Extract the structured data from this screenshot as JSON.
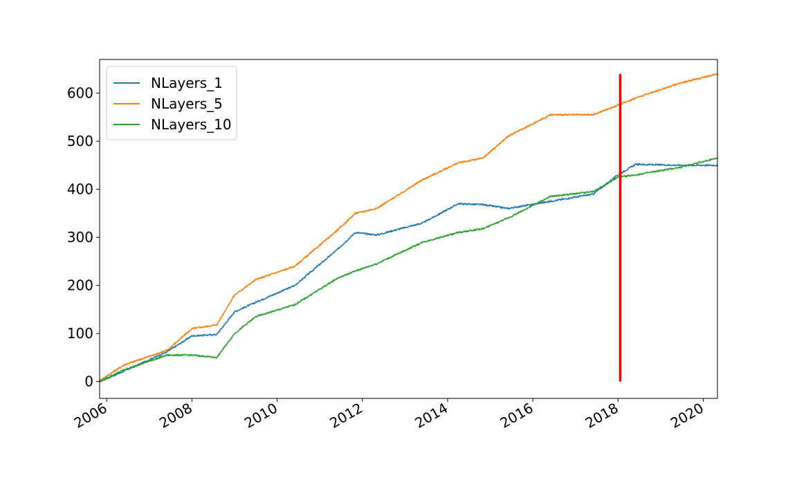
{
  "chart_data": {
    "type": "line",
    "title": "",
    "xlabel": "",
    "ylabel": "",
    "x_ticks": [
      "2006",
      "2008",
      "2010",
      "2012",
      "2014",
      "2016",
      "2018",
      "2020"
    ],
    "y_ticks": [
      "0",
      "100",
      "200",
      "300",
      "400",
      "500",
      "600"
    ],
    "xlim": [
      "2005-11",
      "2020-05"
    ],
    "ylim": [
      -35,
      670
    ],
    "grid": false,
    "legend": "upper-left",
    "x": [
      "2005-11",
      "2006-06",
      "2007-06",
      "2008-01",
      "2008-08",
      "2009-01",
      "2009-07",
      "2010-06",
      "2011-06",
      "2011-11",
      "2012-05",
      "2013-06",
      "2014-04",
      "2014-11",
      "2015-06",
      "2016-06",
      "2017-06",
      "2018-01",
      "2018-06",
      "2019-06",
      "2020-05"
    ],
    "series": [
      {
        "name": "NLayers_1",
        "color": "#1f77b4",
        "values": [
          0,
          22,
          62,
          95,
          98,
          145,
          165,
          200,
          275,
          310,
          305,
          330,
          370,
          368,
          360,
          375,
          390,
          430,
          452,
          450,
          450
        ]
      },
      {
        "name": "NLayers_5",
        "color": "#ff7f0e",
        "values": [
          2,
          35,
          65,
          110,
          118,
          180,
          212,
          240,
          315,
          350,
          360,
          420,
          455,
          465,
          510,
          555,
          555,
          575,
          590,
          620,
          640
        ]
      },
      {
        "name": "NLayers_10",
        "color": "#2ca02c",
        "values": [
          0,
          25,
          55,
          55,
          50,
          100,
          135,
          160,
          215,
          230,
          245,
          290,
          310,
          318,
          340,
          385,
          395,
          425,
          430,
          445,
          465
        ]
      }
    ],
    "annotations": [
      {
        "type": "vertical-line",
        "x": "2018-01-20",
        "y_from": 0,
        "y_to": 640,
        "color": "#ff0000"
      }
    ]
  }
}
